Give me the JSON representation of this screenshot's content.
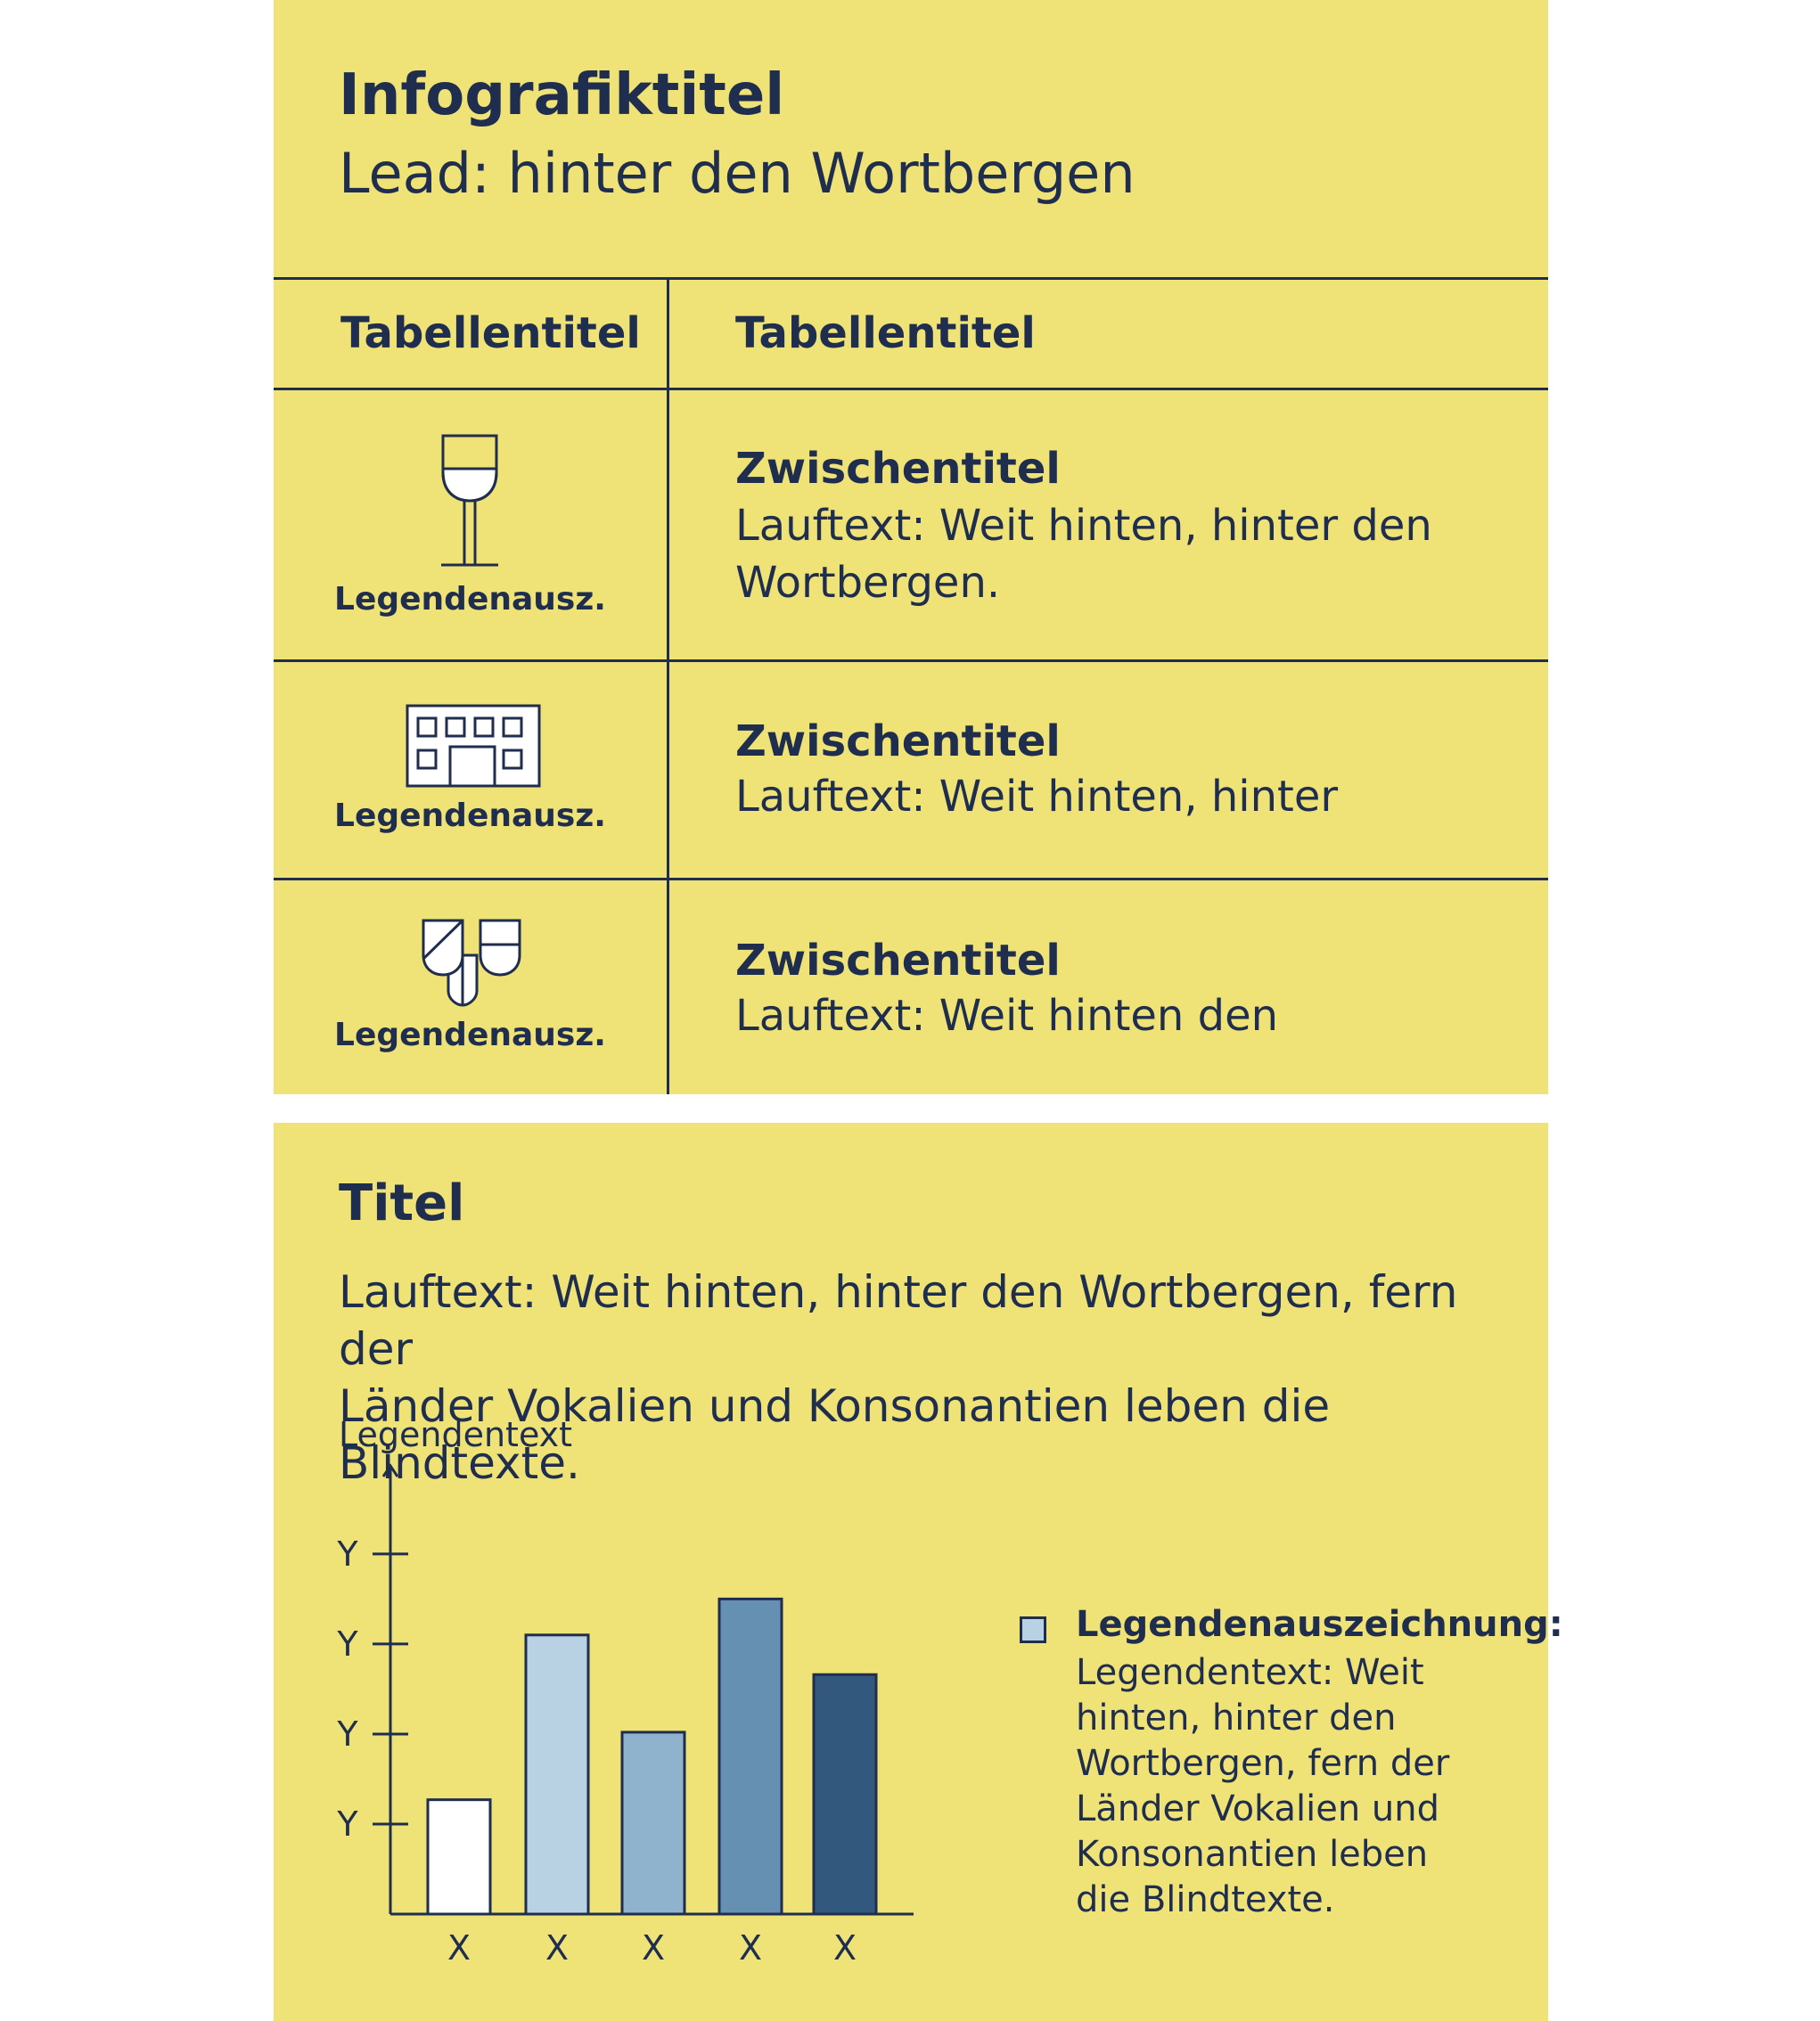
{
  "header": {
    "title": "Infografiktitel",
    "lead": "Lead: hinter den Wortbergen"
  },
  "table": {
    "headers": [
      "Tabellentitel",
      "Tabellentitel"
    ],
    "rows": [
      {
        "icon": "wine-glass-icon",
        "legend": "Legendenausz.",
        "subtitle": "Zwischentitel",
        "text_lines": [
          "Lauftext: Weit hinten, hinter den",
          "Wortbergen."
        ]
      },
      {
        "icon": "building-icon",
        "legend": "Legendenausz.",
        "subtitle": "Zwischentitel",
        "text_lines": [
          "Lauftext: Weit hinten, hinter"
        ]
      },
      {
        "icon": "shields-icon",
        "legend": "Legendenausz.",
        "subtitle": "Zwischentitel",
        "text_lines": [
          "Lauftext: Weit hinten den"
        ]
      }
    ]
  },
  "section2": {
    "title": "Titel",
    "text_lines": [
      "Lauftext: Weit hinten, hinter den Wortbergen, fern der",
      "Länder Vokalien und Konsonantien leben die Blindtexte."
    ]
  },
  "chart_data": {
    "type": "bar",
    "ylabel": "Legendentext",
    "ytick_labels": [
      "Y",
      "Y",
      "Y",
      "Y"
    ],
    "ytick_values": [
      1,
      2,
      3,
      4
    ],
    "categories": [
      "X",
      "X",
      "X",
      "X",
      "X"
    ],
    "values": [
      1.27,
      3.1,
      2.02,
      3.5,
      2.66
    ],
    "bar_colors": [
      "#ffffff",
      "#b8d2e4",
      "#8fb3cc",
      "#6690b2",
      "#33587d"
    ],
    "ylim": [
      0,
      4.85
    ],
    "legend": {
      "placement": "right",
      "title": "Legendenauszeichnung:",
      "text_lines": [
        "Legendentext: Weit",
        "hinten, hinter den",
        "Wortbergen, fern der",
        "Länder Vokalien und",
        "Konsonantien leben",
        "die Blindtexte."
      ],
      "swatch_color": "#b8d2e4"
    }
  },
  "colors": {
    "background": "#efe277",
    "ink": "#1f2d4e"
  }
}
